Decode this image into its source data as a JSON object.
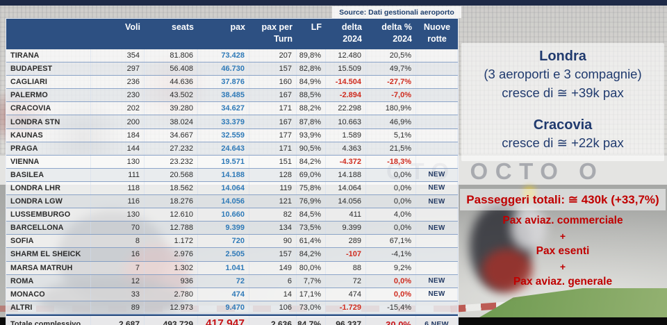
{
  "source_note": "Source: Dati gestionali aeroporto",
  "colors": {
    "header_bg": "#2d5082",
    "pax_blue": "#2f7ab8",
    "negative_red": "#cf2b1e",
    "navy_text": "#203a6e",
    "annotation_red": "#c00000"
  },
  "background": {
    "barrier_text": "CTO OCTO O"
  },
  "table": {
    "headers": [
      {
        "l1": "",
        "l2": ""
      },
      {
        "l1": "Voli",
        "l2": ""
      },
      {
        "l1": "seats",
        "l2": ""
      },
      {
        "l1": "pax",
        "l2": ""
      },
      {
        "l1": "pax per",
        "l2": "Turn"
      },
      {
        "l1": "LF",
        "l2": ""
      },
      {
        "l1": "delta",
        "l2": "2024"
      },
      {
        "l1": "delta %",
        "l2": "2024"
      },
      {
        "l1": "Nuove",
        "l2": "rotte"
      }
    ],
    "rows": [
      {
        "name": "TIRANA",
        "voli": "354",
        "seats": "81.806",
        "pax": "73.428",
        "pax_per_turn": "207",
        "lf": "89,8%",
        "delta": "12.480",
        "delta_red": false,
        "delta_pct": "20,5%",
        "pct_red": false,
        "nuove": ""
      },
      {
        "name": "BUDAPEST",
        "voli": "297",
        "seats": "56.408",
        "pax": "46.730",
        "pax_per_turn": "157",
        "lf": "82,8%",
        "delta": "15.509",
        "delta_red": false,
        "delta_pct": "49,7%",
        "pct_red": false,
        "nuove": ""
      },
      {
        "name": "CAGLIARI",
        "voli": "236",
        "seats": "44.636",
        "pax": "37.876",
        "pax_per_turn": "160",
        "lf": "84,9%",
        "delta": "-14.504",
        "delta_red": true,
        "delta_pct": "-27,7%",
        "pct_red": true,
        "nuove": ""
      },
      {
        "name": "PALERMO",
        "voli": "230",
        "seats": "43.502",
        "pax": "38.485",
        "pax_per_turn": "167",
        "lf": "88,5%",
        "delta": "-2.894",
        "delta_red": true,
        "delta_pct": "-7,0%",
        "pct_red": true,
        "nuove": ""
      },
      {
        "name": "CRACOVIA",
        "voli": "202",
        "seats": "39.280",
        "pax": "34.627",
        "pax_per_turn": "171",
        "lf": "88,2%",
        "delta": "22.298",
        "delta_red": false,
        "delta_pct": "180,9%",
        "pct_red": false,
        "nuove": ""
      },
      {
        "name": "LONDRA STN",
        "voli": "200",
        "seats": "38.024",
        "pax": "33.379",
        "pax_per_turn": "167",
        "lf": "87,8%",
        "delta": "10.663",
        "delta_red": false,
        "delta_pct": "46,9%",
        "pct_red": false,
        "nuove": ""
      },
      {
        "name": "KAUNAS",
        "voli": "184",
        "seats": "34.667",
        "pax": "32.559",
        "pax_per_turn": "177",
        "lf": "93,9%",
        "delta": "1.589",
        "delta_red": false,
        "delta_pct": "5,1%",
        "pct_red": false,
        "nuove": ""
      },
      {
        "name": "PRAGA",
        "voli": "144",
        "seats": "27.232",
        "pax": "24.643",
        "pax_per_turn": "171",
        "lf": "90,5%",
        "delta": "4.363",
        "delta_red": false,
        "delta_pct": "21,5%",
        "pct_red": false,
        "nuove": ""
      },
      {
        "name": "VIENNA",
        "voli": "130",
        "seats": "23.232",
        "pax": "19.571",
        "pax_per_turn": "151",
        "lf": "84,2%",
        "delta": "-4.372",
        "delta_red": true,
        "delta_pct": "-18,3%",
        "pct_red": true,
        "nuove": ""
      },
      {
        "name": "BASILEA",
        "voli": "111",
        "seats": "20.568",
        "pax": "14.188",
        "pax_per_turn": "128",
        "lf": "69,0%",
        "delta": "14.188",
        "delta_red": false,
        "delta_pct": "0,0%",
        "pct_red": false,
        "nuove": "NEW"
      },
      {
        "name": "LONDRA LHR",
        "voli": "118",
        "seats": "18.562",
        "pax": "14.064",
        "pax_per_turn": "119",
        "lf": "75,8%",
        "delta": "14.064",
        "delta_red": false,
        "delta_pct": "0,0%",
        "pct_red": false,
        "nuove": "NEW"
      },
      {
        "name": "LONDRA LGW",
        "voli": "116",
        "seats": "18.276",
        "pax": "14.056",
        "pax_per_turn": "121",
        "lf": "76,9%",
        "delta": "14.056",
        "delta_red": false,
        "delta_pct": "0,0%",
        "pct_red": false,
        "nuove": "NEW"
      },
      {
        "name": "LUSSEMBURGO",
        "voli": "130",
        "seats": "12.610",
        "pax": "10.660",
        "pax_per_turn": "82",
        "lf": "84,5%",
        "delta": "411",
        "delta_red": false,
        "delta_pct": "4,0%",
        "pct_red": false,
        "nuove": ""
      },
      {
        "name": "BARCELLONA",
        "voli": "70",
        "seats": "12.788",
        "pax": "9.399",
        "pax_per_turn": "134",
        "lf": "73,5%",
        "delta": "9.399",
        "delta_red": false,
        "delta_pct": "0,0%",
        "pct_red": false,
        "nuove": "NEW"
      },
      {
        "name": "SOFIA",
        "voli": "8",
        "seats": "1.172",
        "pax": "720",
        "pax_per_turn": "90",
        "lf": "61,4%",
        "delta": "289",
        "delta_red": false,
        "delta_pct": "67,1%",
        "pct_red": false,
        "nuove": ""
      },
      {
        "name": "SHARM EL SHEICK",
        "voli": "16",
        "seats": "2.976",
        "pax": "2.505",
        "pax_per_turn": "157",
        "lf": "84,2%",
        "delta": "-107",
        "delta_red": true,
        "delta_pct": "-4,1%",
        "pct_red": false,
        "nuove": ""
      },
      {
        "name": "MARSA MATRUH",
        "voli": "7",
        "seats": "1.302",
        "pax": "1.041",
        "pax_per_turn": "149",
        "lf": "80,0%",
        "delta": "88",
        "delta_red": false,
        "delta_pct": "9,2%",
        "pct_red": false,
        "nuove": ""
      },
      {
        "name": "ROMA",
        "voli": "12",
        "seats": "936",
        "pax": "72",
        "pax_per_turn": "6",
        "lf": "7,7%",
        "delta": "72",
        "delta_red": false,
        "delta_pct": "0,0%",
        "pct_red": true,
        "nuove": "NEW"
      },
      {
        "name": "MONACO",
        "voli": "33",
        "seats": "2.780",
        "pax": "474",
        "pax_per_turn": "14",
        "lf": "17,1%",
        "delta": "474",
        "delta_red": false,
        "delta_pct": "0,0%",
        "pct_red": true,
        "nuove": "NEW"
      },
      {
        "name": "ALTRI",
        "voli": "89",
        "seats": "12.973",
        "pax": "9.470",
        "pax_per_turn": "106",
        "lf": "73,0%",
        "delta": "-1.729",
        "delta_red": true,
        "delta_pct": "-15,4%",
        "pct_red": false,
        "nuove": ""
      }
    ],
    "total": {
      "label": "Totale complessivo",
      "voli": "2.687",
      "seats": "493.729",
      "pax": "417.947",
      "pax_per_turn": "2.636",
      "lf": "84,7%",
      "delta": "96.337",
      "delta_pct": "30,0%",
      "nuove": "6 NEW"
    }
  },
  "annotations": {
    "londra": {
      "title": "Londra",
      "line1": "(3 aeroporti e 3 compagnie)",
      "line2": "cresce di ≅ +39k pax"
    },
    "cracovia": {
      "title": "Cracovia",
      "line1": "cresce di ≅ +22k pax"
    },
    "totals": {
      "headline": "Passeggeri totali: ≅ 430k (+33,7%)",
      "item1": "Pax aviaz. commerciale",
      "plus1": "+",
      "item2": "Pax esenti",
      "plus2": "+",
      "item3": "Pax aviaz. generale"
    }
  }
}
